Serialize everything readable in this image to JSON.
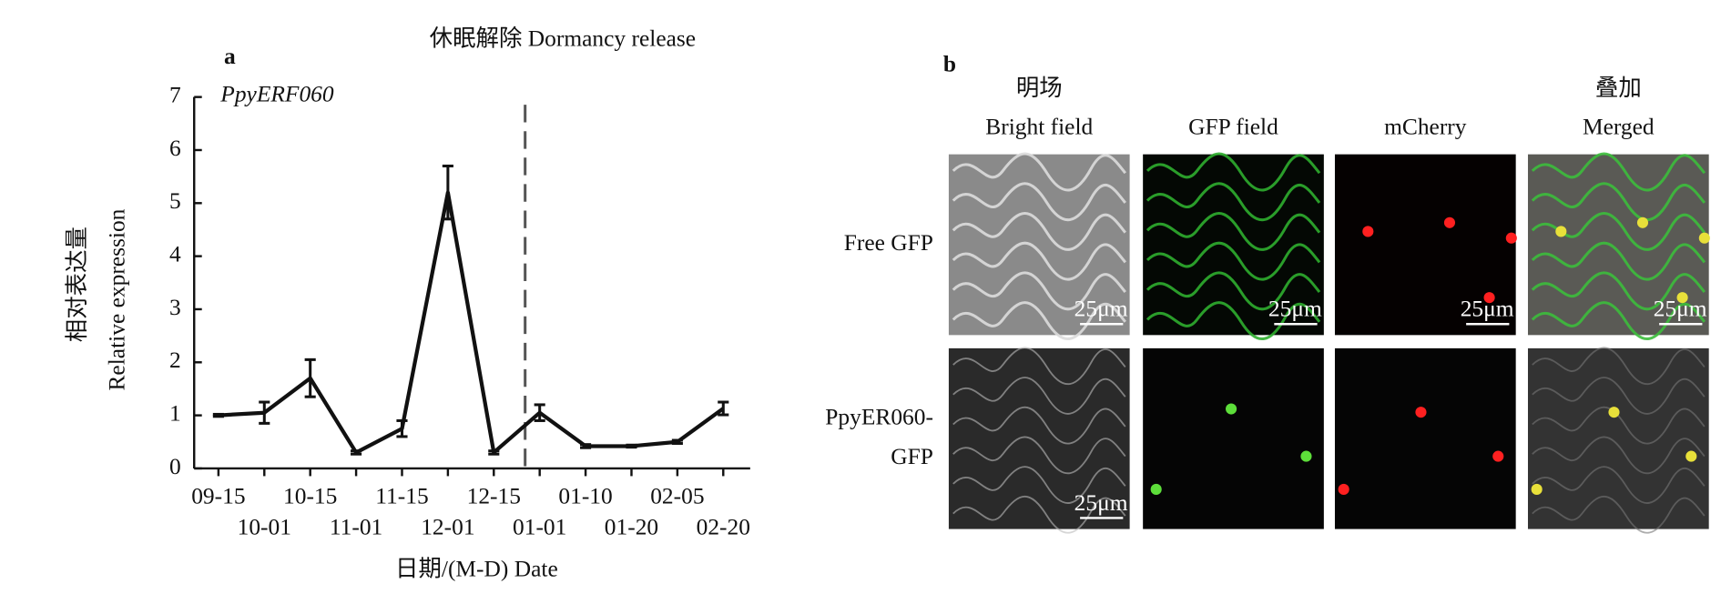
{
  "chart_data": {
    "type": "line",
    "title": "休眠解除 Dormancy release",
    "panel_label": "a",
    "annotation": "PpyERF060",
    "y_label": [
      "相对表达量",
      "Relative expression"
    ],
    "x_label": "日期/(M-D) Date",
    "categories": [
      "09-15",
      "10-01",
      "10-15",
      "11-01",
      "11-15",
      "12-01",
      "12-15",
      "01-01",
      "01-10",
      "01-20",
      "02-05",
      "02-20"
    ],
    "values": [
      1.0,
      1.05,
      1.7,
      0.3,
      0.75,
      5.2,
      0.3,
      1.05,
      0.42,
      0.42,
      0.5,
      1.13
    ],
    "errors": [
      0.02,
      0.2,
      0.35,
      0.03,
      0.15,
      0.5,
      0.03,
      0.15,
      0.03,
      0.02,
      0.03,
      0.12
    ],
    "color": "#111111",
    "ylim": [
      0,
      7
    ],
    "yticks": [
      0,
      1,
      2,
      3,
      4,
      5,
      6,
      7
    ]
  },
  "panel_b": {
    "label": "b",
    "columns": [
      [
        "明场",
        "Bright field"
      ],
      [
        "GFP field"
      ],
      [
        "mCherry"
      ],
      [
        "叠加",
        "Merged"
      ]
    ],
    "rows": [
      {
        "label": [
          "Free GFP"
        ],
        "scale_bars": [
          "25μm",
          "25μm",
          "25μm",
          "25μm"
        ]
      },
      {
        "label": [
          "PpyER060-",
          "GFP"
        ],
        "scale_bars": [
          "25μm"
        ]
      }
    ]
  }
}
